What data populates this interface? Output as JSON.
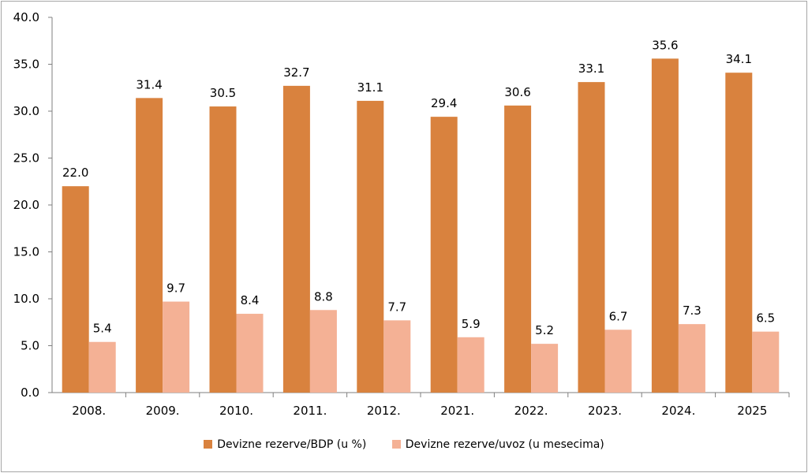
{
  "chart_data": {
    "type": "bar",
    "categories": [
      "2008.",
      "2009.",
      "2010.",
      "2011.",
      "2012.",
      "2021.",
      "2022.",
      "2023.",
      "2024.",
      "2025"
    ],
    "series": [
      {
        "name": "Devizne rezerve/BDP (u %)",
        "color": "#d9823e",
        "values": [
          22.0,
          31.4,
          30.5,
          32.7,
          31.1,
          29.4,
          30.6,
          33.1,
          35.6,
          34.1
        ],
        "labels": [
          "22.0",
          "31.4",
          "30.5",
          "32.7",
          "31.1",
          "29.4",
          "30.6",
          "33.1",
          "35.6",
          "34.1"
        ]
      },
      {
        "name": "Devizne rezerve/uvoz (u mesecima)",
        "color": "#f4b195",
        "values": [
          5.4,
          9.7,
          8.4,
          8.8,
          7.7,
          5.9,
          5.2,
          6.7,
          7.3,
          6.5
        ],
        "labels": [
          "5.4",
          "9.7",
          "8.4",
          "8.8",
          "7.7",
          "5.9",
          "5.2",
          "6.7",
          "7.3",
          "6.5"
        ]
      }
    ],
    "ylim": [
      0,
      40
    ],
    "yticks": [
      "0.0",
      "5.0",
      "10.0",
      "15.0",
      "20.0",
      "25.0",
      "30.0",
      "35.0",
      "40.0"
    ],
    "grid": false,
    "legend_position": "bottom"
  }
}
